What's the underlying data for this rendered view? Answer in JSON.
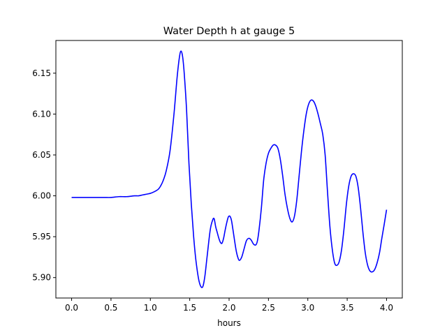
{
  "chart_data": {
    "type": "line",
    "title": "Water Depth h at gauge 5",
    "xlabel": "hours",
    "ylabel": "",
    "xlim": [
      -0.2,
      4.2
    ],
    "ylim": [
      5.875,
      6.19
    ],
    "xticks": [
      0.0,
      0.5,
      1.0,
      1.5,
      2.0,
      2.5,
      3.0,
      3.5,
      4.0
    ],
    "xtick_labels": [
      "0.0",
      "0.5",
      "1.0",
      "1.5",
      "2.0",
      "2.5",
      "3.0",
      "3.5",
      "4.0"
    ],
    "yticks": [
      5.9,
      5.95,
      6.0,
      6.05,
      6.1,
      6.15
    ],
    "ytick_labels": [
      "5.90",
      "5.95",
      "6.00",
      "6.05",
      "6.10",
      "6.15"
    ],
    "grid": false,
    "series": [
      {
        "color": "#0000ff",
        "x": [
          0.0,
          0.2,
          0.4,
          0.5,
          0.6,
          0.7,
          0.8,
          0.85,
          0.9,
          0.95,
          1.0,
          1.05,
          1.1,
          1.13,
          1.16,
          1.2,
          1.25,
          1.3,
          1.34,
          1.37,
          1.39,
          1.41,
          1.43,
          1.46,
          1.49,
          1.52,
          1.55,
          1.58,
          1.62,
          1.66,
          1.69,
          1.72,
          1.76,
          1.79,
          1.81,
          1.83,
          1.85,
          1.87,
          1.89,
          1.91,
          1.93,
          1.95,
          1.97,
          1.99,
          2.01,
          2.03,
          2.05,
          2.07,
          2.09,
          2.11,
          2.13,
          2.16,
          2.19,
          2.22,
          2.25,
          2.28,
          2.31,
          2.34,
          2.36,
          2.38,
          2.41,
          2.44,
          2.47,
          2.5,
          2.53,
          2.56,
          2.59,
          2.62,
          2.65,
          2.68,
          2.71,
          2.74,
          2.77,
          2.8,
          2.83,
          2.86,
          2.89,
          2.92,
          2.95,
          2.98,
          3.01,
          3.04,
          3.07,
          3.1,
          3.13,
          3.16,
          3.19,
          3.22,
          3.25,
          3.28,
          3.31,
          3.34,
          3.37,
          3.4,
          3.43,
          3.46,
          3.49,
          3.52,
          3.55,
          3.58,
          3.61,
          3.64,
          3.67,
          3.7,
          3.73,
          3.76,
          3.79,
          3.82,
          3.85,
          3.88,
          3.91,
          3.94,
          3.97,
          4.0
        ],
        "y": [
          5.998,
          5.998,
          5.998,
          5.998,
          5.999,
          5.999,
          6.0,
          6.0,
          6.001,
          6.002,
          6.003,
          6.005,
          6.008,
          6.012,
          6.018,
          6.03,
          6.055,
          6.1,
          6.145,
          6.17,
          6.177,
          6.17,
          6.15,
          6.105,
          6.04,
          5.99,
          5.95,
          5.92,
          5.895,
          5.888,
          5.9,
          5.925,
          5.958,
          5.97,
          5.972,
          5.962,
          5.955,
          5.948,
          5.943,
          5.942,
          5.948,
          5.958,
          5.967,
          5.974,
          5.975,
          5.97,
          5.958,
          5.945,
          5.933,
          5.925,
          5.921,
          5.925,
          5.935,
          5.945,
          5.948,
          5.946,
          5.941,
          5.94,
          5.945,
          5.958,
          5.985,
          6.02,
          6.04,
          6.052,
          6.058,
          6.062,
          6.062,
          6.058,
          6.045,
          6.025,
          6.002,
          5.985,
          5.973,
          5.968,
          5.975,
          5.995,
          6.025,
          6.055,
          6.08,
          6.1,
          6.112,
          6.117,
          6.116,
          6.11,
          6.1,
          6.088,
          6.075,
          6.05,
          6.005,
          5.963,
          5.935,
          5.918,
          5.915,
          5.92,
          5.935,
          5.96,
          5.99,
          6.012,
          6.024,
          6.027,
          6.024,
          6.01,
          5.985,
          5.955,
          5.93,
          5.915,
          5.908,
          5.907,
          5.91,
          5.918,
          5.93,
          5.948,
          5.965,
          5.983
        ]
      }
    ]
  }
}
